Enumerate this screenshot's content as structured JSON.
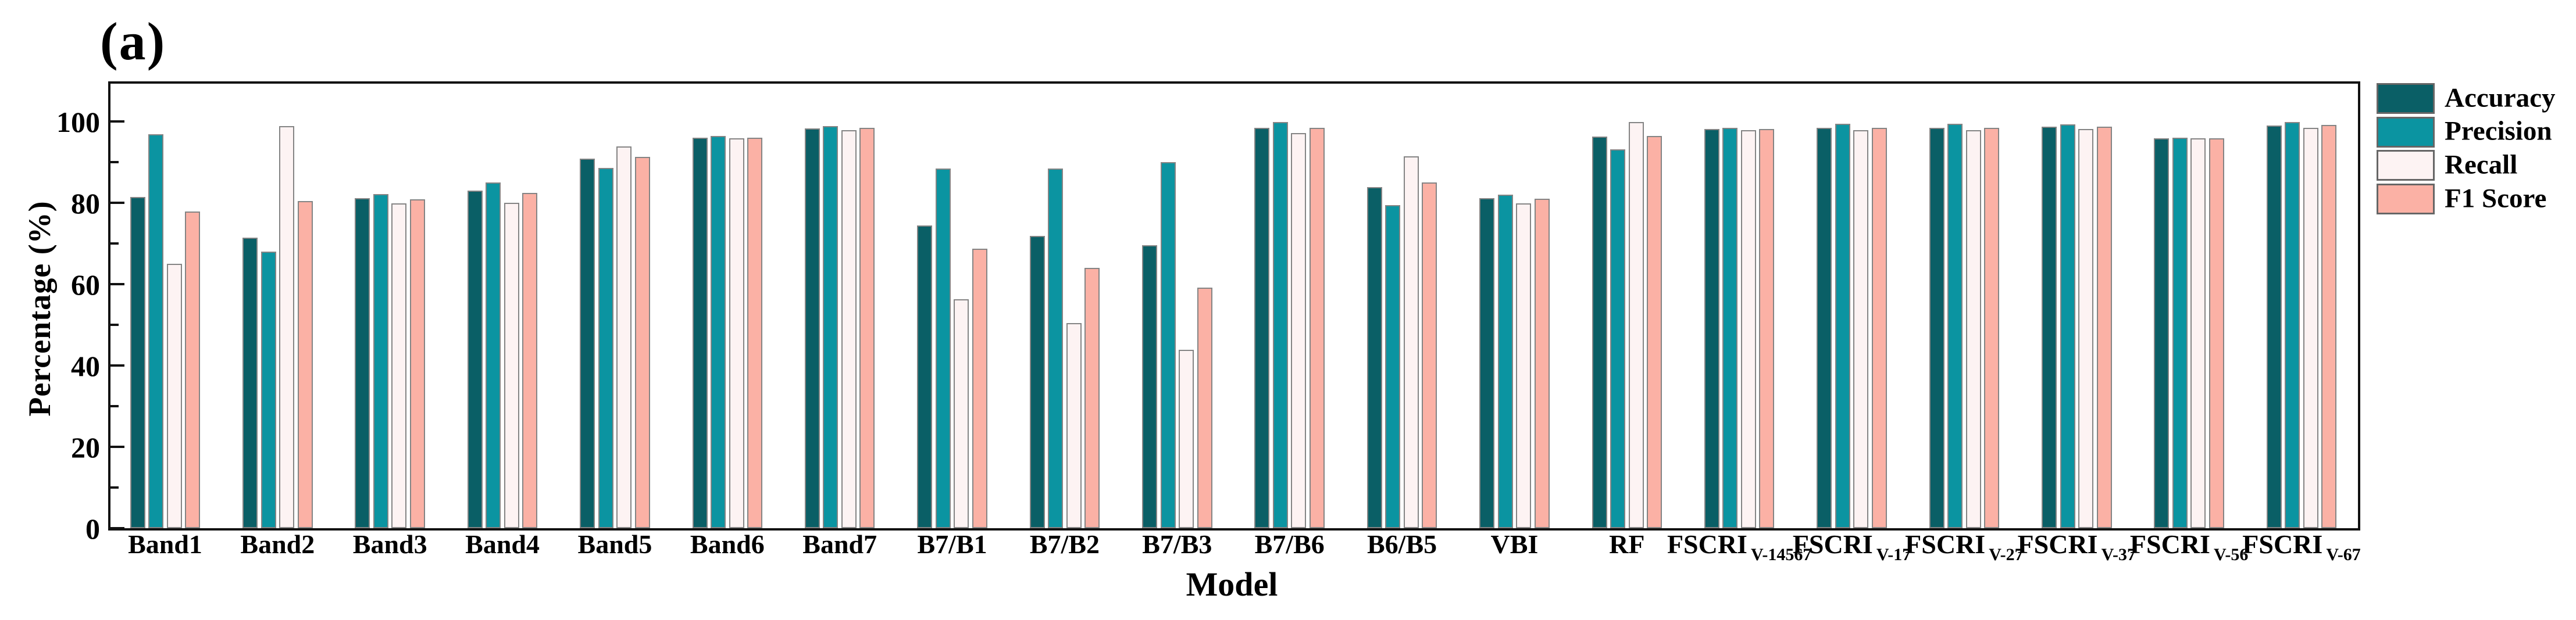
{
  "figure": {
    "panel_label": "(a)",
    "background_color": "#ffffff",
    "axis_color": "#111111",
    "bar_outline_color": "#848484"
  },
  "chart_data": {
    "type": "bar",
    "title": "(a)",
    "xlabel": "Model",
    "ylabel": "Percentage (%)",
    "ylim": [
      0,
      109
    ],
    "yticks_major": [
      0,
      20,
      40,
      60,
      80,
      100
    ],
    "yticks_minor": [
      10,
      30,
      50,
      70,
      90
    ],
    "grid": "off",
    "legend_position": "right-outside-top",
    "categories": [
      {
        "label": "Band1",
        "sub": ""
      },
      {
        "label": "Band2",
        "sub": ""
      },
      {
        "label": "Band3",
        "sub": ""
      },
      {
        "label": "Band4",
        "sub": ""
      },
      {
        "label": "Band5",
        "sub": ""
      },
      {
        "label": "Band6",
        "sub": ""
      },
      {
        "label": "Band7",
        "sub": ""
      },
      {
        "label": "B7/B1",
        "sub": ""
      },
      {
        "label": "B7/B2",
        "sub": ""
      },
      {
        "label": "B7/B3",
        "sub": ""
      },
      {
        "label": "B7/B6",
        "sub": ""
      },
      {
        "label": "B6/B5",
        "sub": ""
      },
      {
        "label": "VBI",
        "sub": ""
      },
      {
        "label": "RF",
        "sub": ""
      },
      {
        "label": "FSCRI",
        "sub": "V-14567"
      },
      {
        "label": "FSCRI",
        "sub": "V-17"
      },
      {
        "label": "FSCRI",
        "sub": "V-27"
      },
      {
        "label": "FSCRI",
        "sub": "V-37"
      },
      {
        "label": "FSCRI",
        "sub": "V-56"
      },
      {
        "label": "FSCRI",
        "sub": "V-67"
      }
    ],
    "series": [
      {
        "name": "Accuracy",
        "color": "#0a5f66",
        "values": [
          81.4,
          71.4,
          81.2,
          83.0,
          90.9,
          96.0,
          98.3,
          74.4,
          71.9,
          69.6,
          98.4,
          83.9,
          81.2,
          96.3,
          98.2,
          98.5,
          98.5,
          98.7,
          95.9,
          99.0
        ]
      },
      {
        "name": "Precision",
        "color": "#0b94a1",
        "values": [
          96.9,
          68.0,
          82.1,
          85.0,
          88.6,
          96.4,
          98.8,
          88.5,
          88.5,
          90.0,
          99.9,
          79.5,
          82.0,
          93.2,
          98.5,
          99.4,
          99.5,
          99.3,
          96.0,
          99.9
        ]
      },
      {
        "name": "Recall",
        "color": "#fdf3f3",
        "values": [
          65.0,
          98.9,
          79.8,
          80.0,
          93.9,
          95.8,
          97.8,
          56.3,
          50.4,
          43.9,
          97.1,
          91.5,
          79.9,
          99.9,
          97.8,
          97.9,
          97.9,
          98.2,
          95.8,
          98.5
        ]
      },
      {
        "name": "F1 Score",
        "color": "#fbb1a5",
        "values": [
          77.8,
          80.5,
          80.9,
          82.4,
          91.3,
          96.0,
          98.4,
          68.7,
          64.0,
          59.1,
          98.4,
          85.0,
          81.0,
          96.5,
          98.2,
          98.5,
          98.5,
          98.7,
          95.9,
          99.1
        ]
      }
    ]
  }
}
